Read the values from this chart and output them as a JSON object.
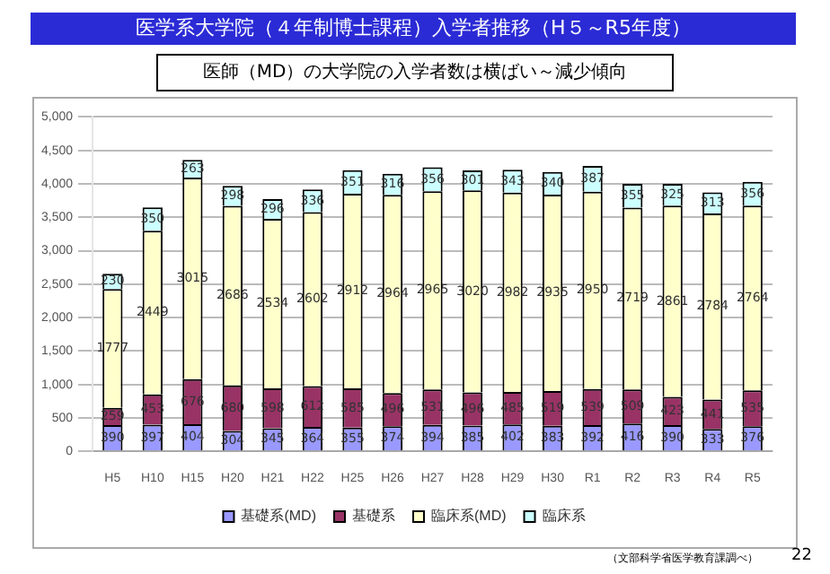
{
  "chart_data": {
    "type": "bar",
    "title": "医学系大学院（４年制博士課程）入学者推移（H５～R5年度）",
    "subtitle": "医師（MD）の大学院の入学者数は横ばい～減少傾向",
    "categories": [
      "H5",
      "H10",
      "H15",
      "H20",
      "H21",
      "H22",
      "H25",
      "H26",
      "H27",
      "H28",
      "H29",
      "H30",
      "R1",
      "R2",
      "R3",
      "R4",
      "R5"
    ],
    "stacked": true,
    "series": [
      {
        "name": "基礎系(MD)",
        "color": "#9999ff",
        "values": [
          390,
          397,
          404,
          304,
          345,
          364,
          355,
          374,
          394,
          385,
          402,
          383,
          392,
          416,
          390,
          333,
          376
        ]
      },
      {
        "name": "基礎系",
        "color": "#993366",
        "values": [
          259,
          453,
          676,
          680,
          598,
          612,
          585,
          496,
          531,
          496,
          485,
          519,
          539,
          509,
          423,
          441,
          535
        ]
      },
      {
        "name": "臨床系(MD)",
        "color": "#ffffcc",
        "values": [
          1777,
          2449,
          3015,
          2686,
          2534,
          2602,
          2912,
          2964,
          2965,
          3020,
          2982,
          2935,
          2950,
          2719,
          2861,
          2784,
          2764
        ]
      },
      {
        "name": "臨床系",
        "color": "#ccffff",
        "values": [
          230,
          350,
          263,
          298,
          296,
          336,
          351,
          316,
          356,
          301,
          343,
          340,
          387,
          355,
          325,
          313,
          356
        ]
      }
    ],
    "ylim": [
      0,
      5000
    ],
    "yticks": [
      0,
      500,
      {
        "value": 1000,
        "label": "1,000"
      },
      {
        "value": 1500,
        "label": "1,500"
      },
      {
        "value": 2000,
        "label": "2,000"
      },
      {
        "value": 2500,
        "label": "2,500"
      },
      {
        "value": 3000,
        "label": "3,000"
      },
      {
        "value": 3500,
        "label": "3,500"
      },
      {
        "value": 4000,
        "label": "4,000"
      },
      {
        "value": 4500,
        "label": "4,500"
      },
      {
        "value": 5000,
        "label": "5,000"
      }
    ],
    "grid": "y",
    "legend": "bottom",
    "data_labels": true,
    "annotations": [
      "（文部科学省医学教育課調べ）",
      "22"
    ]
  }
}
